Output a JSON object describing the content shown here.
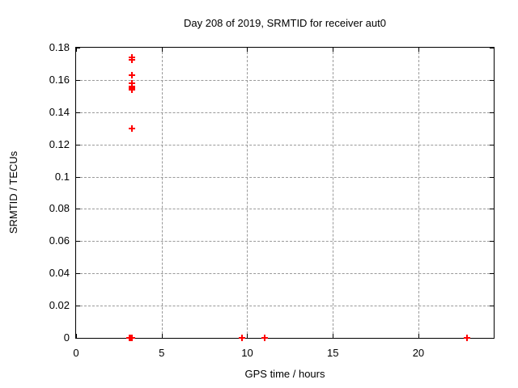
{
  "chart_data": {
    "type": "scatter",
    "title": "Day 208 of 2019, SRMTID for receiver aut0",
    "xlabel": "GPS time / hours",
    "ylabel": "SRMTID / TECUs",
    "xlim": [
      0,
      24.4
    ],
    "ylim": [
      0,
      0.18
    ],
    "xticks": [
      0,
      5,
      10,
      15,
      20
    ],
    "xtick_labels": [
      "0",
      "5",
      "10",
      "15",
      "20"
    ],
    "yticks": [
      0,
      0.02,
      0.04,
      0.06,
      0.08,
      0.1,
      0.12,
      0.14,
      0.16,
      0.18
    ],
    "ytick_labels": [
      "0",
      "0.02",
      "0.04",
      "0.06",
      "0.08",
      "0.1",
      "0.12",
      "0.14",
      "0.16",
      "0.18"
    ],
    "grid": true,
    "marker": "plus",
    "colors": {
      "marker": "#ff0000",
      "grid": "#999999",
      "axis": "#000000",
      "text": "#000000",
      "background": "#ffffff"
    },
    "series": [
      {
        "name": "SRMTID",
        "points": [
          [
            3.24,
            0.174
          ],
          [
            3.24,
            0.1725
          ],
          [
            3.24,
            0.163
          ],
          [
            3.24,
            0.158
          ],
          [
            3.24,
            0.156
          ],
          [
            3.24,
            0.155
          ],
          [
            3.24,
            0.154
          ],
          [
            3.28,
            0.13
          ],
          [
            3.12,
            0
          ],
          [
            3.16,
            0
          ],
          [
            3.2,
            0
          ],
          [
            3.24,
            0
          ],
          [
            9.7,
            0
          ],
          [
            11.0,
            0
          ],
          [
            22.85,
            0
          ]
        ]
      }
    ]
  }
}
